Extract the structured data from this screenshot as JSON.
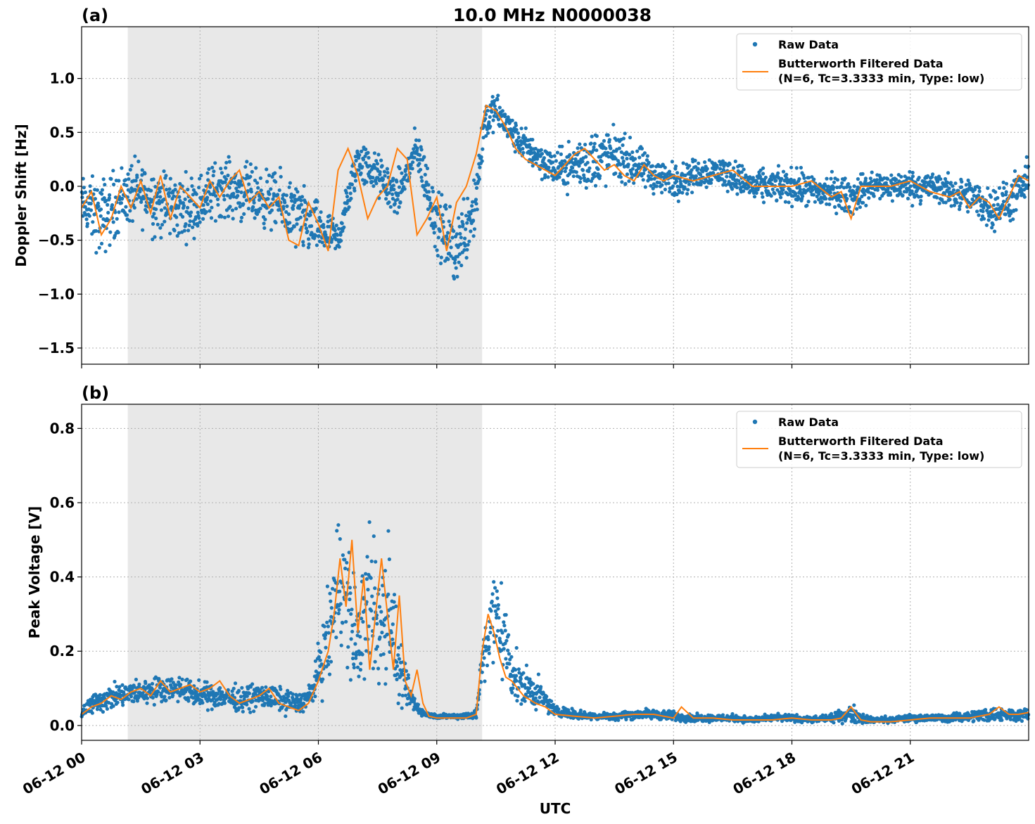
{
  "figure_title": "10.0 MHz N0000038",
  "colors": {
    "raw": "#1f77b4",
    "filtered": "#ff7f0e",
    "night_shade": "#e8e8e8",
    "grid": "#b0b0b0"
  },
  "chart_data": [
    {
      "type": "scatter",
      "panel_label": "(a)",
      "title": "10.0 MHz N0000038",
      "xlabel": "",
      "ylabel": "Doppler Shift [Hz]",
      "xlim_hours": [
        0,
        24
      ],
      "ylim": [
        -1.65,
        1.48
      ],
      "yticks": [
        -1.5,
        -1.0,
        -0.5,
        0.0,
        0.5,
        1.0
      ],
      "ytick_labels": [
        "−1.5",
        "−1.0",
        "−0.5",
        "0.0",
        "0.5",
        "1.0"
      ],
      "shaded_span_hours": [
        1.17,
        10.15
      ],
      "grid": true,
      "legend_position": "top-right",
      "legend": [
        "Raw Data",
        "Butterworth Filtered Data",
        "(N=6, Tc=3.3333 min, Type: low)"
      ],
      "series": [
        {
          "name": "Raw Data",
          "style": "points",
          "x_hours": [
            0,
            0.5,
            1,
            1.5,
            2,
            2.5,
            3,
            3.5,
            4,
            4.5,
            5,
            5.5,
            6,
            6.5,
            7,
            7.5,
            8,
            8.5,
            9,
            9.5,
            10,
            10.2,
            10.5,
            11,
            11.5,
            12,
            12.5,
            13,
            13.5,
            14,
            14.5,
            15,
            15.5,
            16,
            16.5,
            17,
            17.5,
            18,
            18.5,
            19,
            19.5,
            20,
            20.5,
            21,
            21.5,
            22,
            22.5,
            23,
            23.5,
            24
          ],
          "center": [
            -0.15,
            -0.3,
            -0.1,
            -0.05,
            -0.15,
            -0.2,
            -0.15,
            0.0,
            -0.05,
            -0.1,
            -0.15,
            -0.3,
            -0.4,
            -0.5,
            0.25,
            0.1,
            -0.1,
            0.35,
            -0.35,
            -0.6,
            -0.1,
            0.6,
            0.7,
            0.45,
            0.3,
            0.15,
            0.2,
            0.25,
            0.3,
            0.2,
            0.1,
            0.05,
            0.1,
            0.15,
            0.1,
            0.0,
            0.0,
            0.0,
            -0.05,
            -0.05,
            -0.1,
            0.0,
            0.0,
            0.0,
            0.0,
            -0.05,
            -0.1,
            -0.2,
            -0.15,
            0.05
          ],
          "spread": [
            0.35,
            0.55,
            0.45,
            0.45,
            0.5,
            0.45,
            0.4,
            0.4,
            0.4,
            0.4,
            0.4,
            0.5,
            0.35,
            0.25,
            0.3,
            0.3,
            0.3,
            0.3,
            0.45,
            0.5,
            0.55,
            0.3,
            0.25,
            0.22,
            0.25,
            0.25,
            0.35,
            0.45,
            0.35,
            0.3,
            0.25,
            0.25,
            0.22,
            0.22,
            0.22,
            0.22,
            0.22,
            0.25,
            0.25,
            0.25,
            0.25,
            0.22,
            0.2,
            0.22,
            0.22,
            0.22,
            0.25,
            0.3,
            0.3,
            0.3
          ]
        },
        {
          "name": "Butterworth Filtered Data",
          "style": "line",
          "x_hours": [
            0,
            0.25,
            0.5,
            0.75,
            1,
            1.25,
            1.5,
            1.75,
            2,
            2.25,
            2.5,
            2.75,
            3,
            3.25,
            3.5,
            3.75,
            4,
            4.25,
            4.5,
            4.75,
            5,
            5.25,
            5.5,
            5.75,
            6,
            6.25,
            6.5,
            6.75,
            7,
            7.25,
            7.5,
            7.75,
            8,
            8.25,
            8.5,
            8.75,
            9,
            9.25,
            9.5,
            9.75,
            10,
            10.25,
            10.5,
            10.75,
            11,
            11.25,
            11.5,
            11.75,
            12,
            12.25,
            12.5,
            12.75,
            13,
            13.25,
            13.5,
            13.75,
            14,
            14.25,
            14.5,
            14.75,
            15,
            15.5,
            16,
            16.5,
            17,
            17.5,
            18,
            18.5,
            19,
            19.25,
            19.5,
            19.75,
            20,
            20.5,
            21,
            21.5,
            22,
            22.25,
            22.5,
            22.75,
            23,
            23.25,
            23.5,
            23.75,
            24
          ],
          "y": [
            -0.2,
            -0.05,
            -0.45,
            -0.3,
            0.0,
            -0.2,
            0.05,
            -0.25,
            0.1,
            -0.3,
            0.0,
            -0.1,
            -0.2,
            0.05,
            -0.1,
            0.05,
            0.15,
            -0.15,
            -0.05,
            -0.2,
            -0.1,
            -0.5,
            -0.55,
            -0.15,
            -0.35,
            -0.6,
            0.15,
            0.35,
            0.1,
            -0.3,
            -0.1,
            0.0,
            0.35,
            0.25,
            -0.45,
            -0.3,
            -0.1,
            -0.6,
            -0.15,
            0.0,
            0.3,
            0.75,
            0.7,
            0.55,
            0.35,
            0.25,
            0.2,
            0.15,
            0.1,
            0.2,
            0.3,
            0.35,
            0.25,
            0.15,
            0.2,
            0.1,
            0.05,
            0.2,
            0.1,
            0.05,
            0.1,
            0.05,
            0.1,
            0.15,
            0.0,
            0.0,
            0.0,
            0.05,
            -0.1,
            -0.05,
            -0.3,
            0.0,
            0.0,
            0.0,
            0.05,
            -0.05,
            -0.1,
            -0.05,
            -0.2,
            -0.1,
            -0.15,
            -0.3,
            -0.1,
            0.1,
            0.05
          ]
        }
      ]
    },
    {
      "type": "scatter",
      "panel_label": "(b)",
      "title": "",
      "xlabel": "UTC",
      "ylabel": "Peak Voltage [V]",
      "xlim_hours": [
        0,
        24
      ],
      "ylim": [
        -0.04,
        0.865
      ],
      "yticks": [
        0.0,
        0.2,
        0.4,
        0.6,
        0.8
      ],
      "ytick_labels": [
        "0.0",
        "0.2",
        "0.4",
        "0.6",
        "0.8"
      ],
      "xticks_hours": [
        0,
        3,
        6,
        9,
        12,
        15,
        18,
        21
      ],
      "xtick_labels": [
        "06-12 00",
        "06-12 03",
        "06-12 06",
        "06-12 09",
        "06-12 12",
        "06-12 15",
        "06-12 18",
        "06-12 21"
      ],
      "shaded_span_hours": [
        1.17,
        10.15
      ],
      "grid": true,
      "legend_position": "top-right",
      "legend": [
        "Raw Data",
        "Butterworth Filtered Data",
        "(N=6, Tc=3.3333 min, Type: low)"
      ],
      "series": [
        {
          "name": "Raw Data",
          "style": "points",
          "x_hours": [
            0,
            0.5,
            1,
            1.5,
            2,
            2.5,
            3,
            3.5,
            4,
            4.5,
            5,
            5.5,
            5.8,
            6,
            6.3,
            6.5,
            6.7,
            7,
            7.3,
            7.6,
            7.8,
            8,
            8.3,
            8.5,
            8.7,
            9,
            9.5,
            10,
            10.2,
            10.5,
            10.8,
            11,
            11.3,
            11.6,
            12,
            12.5,
            13,
            13.5,
            14,
            14.5,
            15,
            15.5,
            16,
            16.5,
            17,
            17.5,
            18,
            18.5,
            19,
            19.5,
            20,
            20.5,
            21,
            21.5,
            22,
            22.5,
            23,
            23.5,
            24
          ],
          "center": [
            0.04,
            0.07,
            0.08,
            0.09,
            0.1,
            0.1,
            0.08,
            0.08,
            0.07,
            0.08,
            0.07,
            0.06,
            0.08,
            0.15,
            0.25,
            0.4,
            0.35,
            0.2,
            0.35,
            0.25,
            0.35,
            0.15,
            0.08,
            0.05,
            0.03,
            0.025,
            0.025,
            0.03,
            0.2,
            0.3,
            0.2,
            0.12,
            0.1,
            0.08,
            0.04,
            0.03,
            0.025,
            0.025,
            0.03,
            0.03,
            0.025,
            0.02,
            0.02,
            0.02,
            0.015,
            0.02,
            0.02,
            0.015,
            0.02,
            0.03,
            0.015,
            0.015,
            0.02,
            0.02,
            0.02,
            0.025,
            0.03,
            0.03,
            0.03
          ],
          "spread": [
            0.03,
            0.05,
            0.05,
            0.05,
            0.05,
            0.05,
            0.05,
            0.05,
            0.05,
            0.05,
            0.05,
            0.04,
            0.05,
            0.1,
            0.2,
            0.3,
            0.3,
            0.2,
            0.3,
            0.3,
            0.3,
            0.15,
            0.06,
            0.03,
            0.01,
            0.01,
            0.01,
            0.02,
            0.12,
            0.25,
            0.15,
            0.1,
            0.08,
            0.06,
            0.02,
            0.02,
            0.015,
            0.015,
            0.02,
            0.02,
            0.02,
            0.015,
            0.015,
            0.015,
            0.012,
            0.015,
            0.015,
            0.012,
            0.015,
            0.04,
            0.012,
            0.012,
            0.015,
            0.015,
            0.015,
            0.02,
            0.03,
            0.025,
            0.025
          ]
        },
        {
          "name": "Butterworth Filtered Data",
          "style": "line",
          "x_hours": [
            0,
            0.25,
            0.5,
            0.75,
            1,
            1.25,
            1.5,
            1.75,
            2,
            2.25,
            2.5,
            2.75,
            3,
            3.25,
            3.5,
            3.75,
            4,
            4.25,
            4.5,
            4.75,
            5,
            5.25,
            5.5,
            5.75,
            6,
            6.25,
            6.4,
            6.55,
            6.7,
            6.85,
            7,
            7.15,
            7.3,
            7.45,
            7.6,
            7.75,
            7.9,
            8.05,
            8.2,
            8.35,
            8.5,
            8.65,
            8.8,
            9,
            9.25,
            9.5,
            9.75,
            10,
            10.15,
            10.3,
            10.45,
            10.6,
            10.75,
            10.9,
            11.05,
            11.2,
            11.35,
            11.5,
            11.75,
            12,
            12.5,
            13,
            13.5,
            14,
            14.5,
            15,
            15.2,
            15.5,
            16,
            16.5,
            17,
            17.5,
            18,
            18.5,
            19,
            19.25,
            19.5,
            19.75,
            20,
            20.5,
            21,
            21.5,
            22,
            22.5,
            23,
            23.25,
            23.5,
            23.75,
            24
          ],
          "y": [
            0.03,
            0.05,
            0.06,
            0.08,
            0.07,
            0.09,
            0.1,
            0.08,
            0.12,
            0.09,
            0.1,
            0.11,
            0.09,
            0.1,
            0.12,
            0.08,
            0.06,
            0.07,
            0.08,
            0.1,
            0.06,
            0.05,
            0.04,
            0.06,
            0.12,
            0.2,
            0.3,
            0.45,
            0.32,
            0.5,
            0.25,
            0.4,
            0.15,
            0.3,
            0.45,
            0.3,
            0.15,
            0.35,
            0.12,
            0.08,
            0.15,
            0.06,
            0.025,
            0.02,
            0.02,
            0.02,
            0.02,
            0.03,
            0.2,
            0.3,
            0.25,
            0.18,
            0.13,
            0.12,
            0.1,
            0.08,
            0.07,
            0.06,
            0.05,
            0.03,
            0.025,
            0.02,
            0.025,
            0.03,
            0.03,
            0.02,
            0.05,
            0.02,
            0.02,
            0.015,
            0.015,
            0.015,
            0.02,
            0.015,
            0.015,
            0.02,
            0.05,
            0.015,
            0.01,
            0.01,
            0.015,
            0.02,
            0.02,
            0.02,
            0.03,
            0.05,
            0.03,
            0.03,
            0.035
          ]
        }
      ]
    }
  ]
}
